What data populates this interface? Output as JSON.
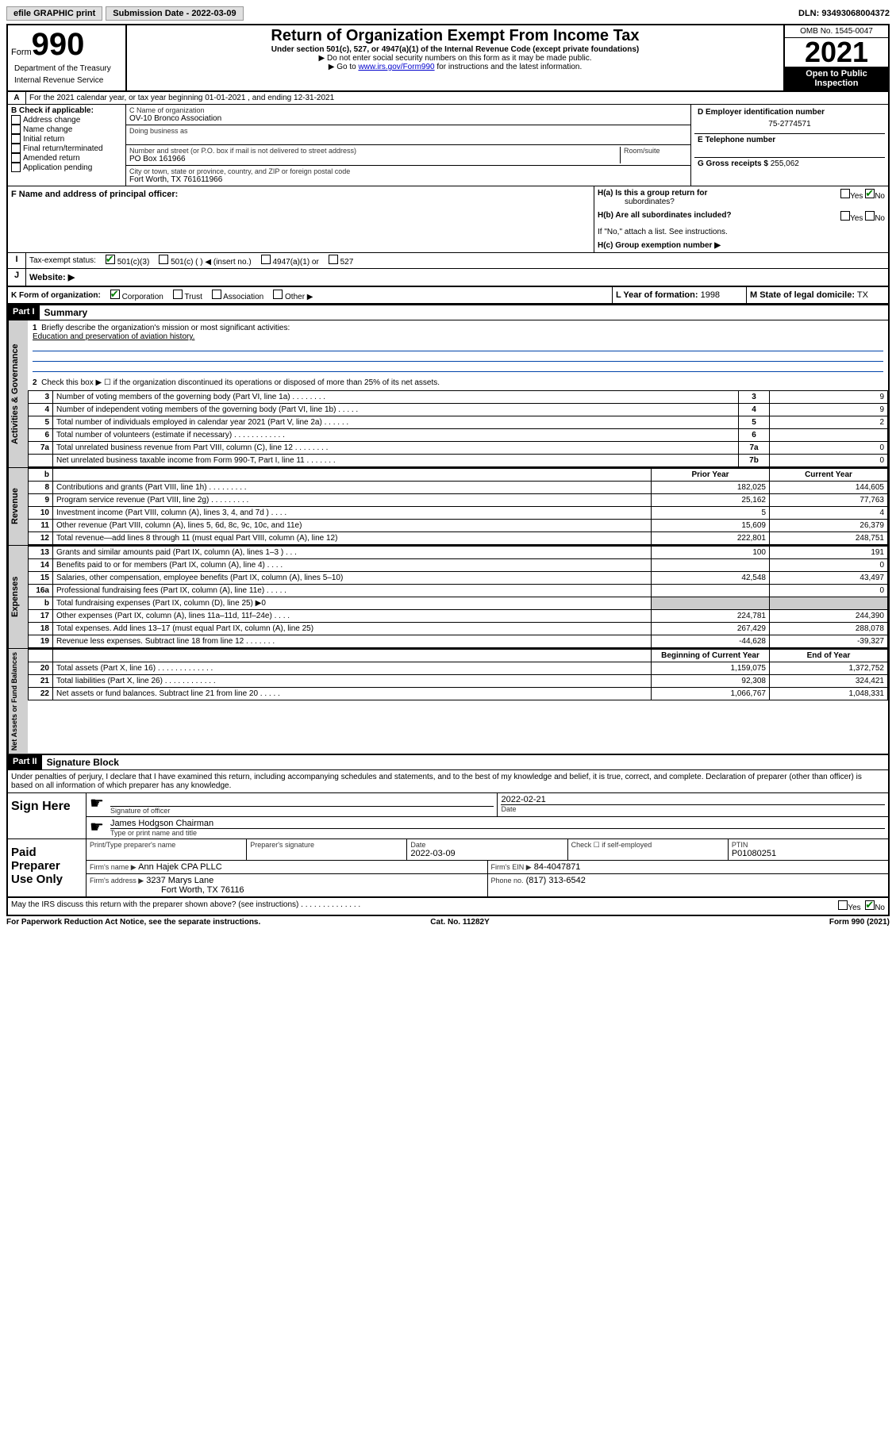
{
  "topbar": {
    "efile": "efile GRAPHIC print",
    "submission_label": "Submission Date - 2022-03-09",
    "dln": "DLN: 93493068004372"
  },
  "header": {
    "form_word": "Form",
    "form_num": "990",
    "dept": "Department of the Treasury",
    "irs": "Internal Revenue Service",
    "title": "Return of Organization Exempt From Income Tax",
    "subtitle": "Under section 501(c), 527, or 4947(a)(1) of the Internal Revenue Code (except private foundations)",
    "instr1": "▶ Do not enter social security numbers on this form as it may be made public.",
    "instr2_pre": "▶ Go to ",
    "instr2_link": "www.irs.gov/Form990",
    "instr2_post": " for instructions and the latest information.",
    "omb": "OMB No. 1545-0047",
    "year": "2021",
    "open_public1": "Open to Public",
    "open_public2": "Inspection"
  },
  "line_a": "For the 2021 calendar year, or tax year beginning 01-01-2021    , and ending 12-31-2021",
  "box_b": {
    "label": "B Check if applicable:",
    "items": [
      "Address change",
      "Name change",
      "Initial return",
      "Final return/terminated",
      "Amended return",
      "Application pending"
    ]
  },
  "box_c": {
    "name_label": "C Name of organization",
    "name": "OV-10 Bronco Association",
    "dba_label": "Doing business as",
    "addr_label": "Number and street (or P.O. box if mail is not delivered to street address)",
    "room_label": "Room/suite",
    "addr": "PO Box 161966",
    "city_label": "City or town, state or province, country, and ZIP or foreign postal code",
    "city": "Fort Worth, TX  761611966"
  },
  "box_d": {
    "label": "D Employer identification number",
    "value": "75-2774571"
  },
  "box_e": {
    "label": "E Telephone number"
  },
  "box_f": {
    "label": "F  Name and address of principal officer:"
  },
  "box_g": {
    "label": "G Gross receipts $",
    "value": "255,062"
  },
  "box_h": {
    "ha_label": "H(a)  Is this a group return for",
    "ha_sub": "subordinates?",
    "hb_label": "H(b)  Are all subordinates included?",
    "hb_note": "If \"No,\" attach a list. See instructions.",
    "hc_label": "H(c)  Group exemption number ▶",
    "yes": "Yes",
    "no": "No"
  },
  "box_i": {
    "label": "Tax-exempt status:",
    "opts": [
      "501(c)(3)",
      "501(c) (  ) ◀ (insert no.)",
      "4947(a)(1) or",
      "527"
    ]
  },
  "box_j": {
    "label": "Website: ▶"
  },
  "box_k": {
    "label": "K Form of organization:",
    "opts": [
      "Corporation",
      "Trust",
      "Association",
      "Other ▶"
    ]
  },
  "box_l": {
    "label": "L Year of formation:",
    "value": "1998"
  },
  "box_m": {
    "label": "M State of legal domicile:",
    "value": "TX"
  },
  "part1": {
    "header": "Part I",
    "title": "Summary",
    "line1_label": "Briefly describe the organization's mission or most significant activities:",
    "line1_text": "Education and preservation of aviation history.",
    "line2": "Check this box ▶ ☐  if the organization discontinued its operations or disposed of more than 25% of its net assets.",
    "sections": {
      "gov": "Activities & Governance",
      "rev": "Revenue",
      "exp": "Expenses",
      "net": "Net Assets or Fund Balances"
    },
    "gov_rows": [
      {
        "n": "3",
        "d": "Number of voting members of the governing body (Part VI, line 1a)  .   .   .   .   .   .   .   .",
        "b": "3",
        "v": "9"
      },
      {
        "n": "4",
        "d": "Number of independent voting members of the governing body (Part VI, line 1b)  .   .   .   .   .",
        "b": "4",
        "v": "9"
      },
      {
        "n": "5",
        "d": "Total number of individuals employed in calendar year 2021 (Part V, line 2a)  .   .   .   .   .   .",
        "b": "5",
        "v": "2"
      },
      {
        "n": "6",
        "d": "Total number of volunteers (estimate if necessary)   .   .   .   .   .   .   .   .   .   .   .   .",
        "b": "6",
        "v": ""
      },
      {
        "n": "7a",
        "d": "Total unrelated business revenue from Part VIII, column (C), line 12  .   .   .   .   .   .   .   .",
        "b": "7a",
        "v": "0"
      },
      {
        "n": "",
        "d": "Net unrelated business taxable income from Form 990-T, Part I, line 11  .   .   .   .   .   .   .",
        "b": "7b",
        "v": "0"
      }
    ],
    "col_headers": {
      "b": "b",
      "prior": "Prior Year",
      "current": "Current Year"
    },
    "rev_rows": [
      {
        "n": "8",
        "d": "Contributions and grants (Part VIII, line 1h)   .   .   .   .   .   .   .   .   .",
        "p": "182,025",
        "c": "144,605"
      },
      {
        "n": "9",
        "d": "Program service revenue (Part VIII, line 2g)  .   .   .   .   .   .   .   .   .",
        "p": "25,162",
        "c": "77,763"
      },
      {
        "n": "10",
        "d": "Investment income (Part VIII, column (A), lines 3, 4, and 7d )   .   .   .   .",
        "p": "5",
        "c": "4"
      },
      {
        "n": "11",
        "d": "Other revenue (Part VIII, column (A), lines 5, 6d, 8c, 9c, 10c, and 11e)",
        "p": "15,609",
        "c": "26,379"
      },
      {
        "n": "12",
        "d": "Total revenue—add lines 8 through 11 (must equal Part VIII, column (A), line 12)",
        "p": "222,801",
        "c": "248,751"
      }
    ],
    "exp_rows": [
      {
        "n": "13",
        "d": "Grants and similar amounts paid (Part IX, column (A), lines 1–3 )  .   .   .",
        "p": "100",
        "c": "191"
      },
      {
        "n": "14",
        "d": "Benefits paid to or for members (Part IX, column (A), line 4)  .   .   .   .",
        "p": "",
        "c": "0"
      },
      {
        "n": "15",
        "d": "Salaries, other compensation, employee benefits (Part IX, column (A), lines 5–10)",
        "p": "42,548",
        "c": "43,497"
      },
      {
        "n": "16a",
        "d": "Professional fundraising fees (Part IX, column (A), line 11e)  .   .   .   .   .",
        "p": "",
        "c": "0"
      },
      {
        "n": "b",
        "d": "Total fundraising expenses (Part IX, column (D), line 25) ▶0",
        "p": "__shade__",
        "c": "__shade__"
      },
      {
        "n": "17",
        "d": "Other expenses (Part IX, column (A), lines 11a–11d, 11f–24e)  .   .   .   .",
        "p": "224,781",
        "c": "244,390"
      },
      {
        "n": "18",
        "d": "Total expenses. Add lines 13–17 (must equal Part IX, column (A), line 25)",
        "p": "267,429",
        "c": "288,078"
      },
      {
        "n": "19",
        "d": "Revenue less expenses. Subtract line 18 from line 12  .   .   .   .   .   .   .",
        "p": "-44,628",
        "c": "-39,327"
      }
    ],
    "net_headers": {
      "beg": "Beginning of Current Year",
      "end": "End of Year"
    },
    "net_rows": [
      {
        "n": "20",
        "d": "Total assets (Part X, line 16)  .   .   .   .   .   .   .   .   .   .   .   .   .",
        "p": "1,159,075",
        "c": "1,372,752"
      },
      {
        "n": "21",
        "d": "Total liabilities (Part X, line 26)   .   .   .   .   .   .   .   .   .   .   .   .",
        "p": "92,308",
        "c": "324,421"
      },
      {
        "n": "22",
        "d": "Net assets or fund balances. Subtract line 21 from line 20  .   .   .   .   .",
        "p": "1,066,767",
        "c": "1,048,331"
      }
    ]
  },
  "part2": {
    "header": "Part II",
    "title": "Signature Block",
    "penalties": "Under penalties of perjury, I declare that I have examined this return, including accompanying schedules and statements, and to the best of my knowledge and belief, it is true, correct, and complete. Declaration of preparer (other than officer) is based on all information of which preparer has any knowledge.",
    "sign_here": "Sign Here",
    "sig_officer": "Signature of officer",
    "sig_date": "2022-02-21",
    "date_label": "Date",
    "officer_name": "James Hodgson Chairman",
    "officer_sub": "Type or print name and title",
    "paid": "Paid Preparer Use Only",
    "prep_name_label": "Print/Type preparer's name",
    "prep_sig_label": "Preparer's signature",
    "prep_date_label": "Date",
    "prep_date": "2022-03-09",
    "self_emp": "Check ☐ if self-employed",
    "ptin_label": "PTIN",
    "ptin": "P01080251",
    "firm_name_label": "Firm's name      ▶",
    "firm_name": "Ann Hajek CPA PLLC",
    "firm_ein_label": "Firm's EIN ▶",
    "firm_ein": "84-4047871",
    "firm_addr_label": "Firm's address ▶",
    "firm_addr1": "3237 Marys Lane",
    "firm_addr2": "Fort Worth, TX  76116",
    "phone_label": "Phone no.",
    "phone": "(817) 313-6542",
    "discuss": "May the IRS discuss this return with the preparer shown above? (see instructions)   .   .   .   .   .   .   .   .   .   .   .   .   .   .",
    "yes": "Yes",
    "no": "No"
  },
  "footer": {
    "pra": "For Paperwork Reduction Act Notice, see the separate instructions.",
    "cat": "Cat. No. 11282Y",
    "form": "Form 990 (2021)"
  }
}
